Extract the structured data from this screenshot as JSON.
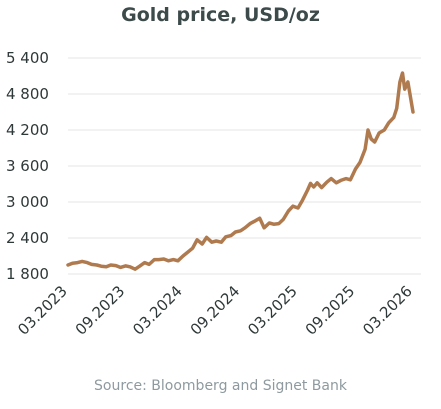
{
  "chart_data": {
    "type": "line",
    "title": "Gold price, USD/oz",
    "source": "Source: Bloomberg and Signet Bank",
    "ylim": [
      1800,
      5400
    ],
    "yticks": [
      {
        "value": 1800,
        "label": "1 800"
      },
      {
        "value": 2400,
        "label": "2 400"
      },
      {
        "value": 3000,
        "label": "3 000"
      },
      {
        "value": 3600,
        "label": "3 600"
      },
      {
        "value": 4200,
        "label": "4 200"
      },
      {
        "value": 4800,
        "label": "4 800"
      },
      {
        "value": 5400,
        "label": "5 400"
      }
    ],
    "xlim": [
      "2023-03",
      "2026-03"
    ],
    "xticks": [
      "03.2023",
      "09.2023",
      "03.2024",
      "09.2024",
      "03.2025",
      "09.2025",
      "03.2026"
    ],
    "grid": true,
    "colors": {
      "line": "#b07a4f",
      "grid": "#e6e6e6",
      "title": "#3d4a4a",
      "source": "#8e9a9f"
    },
    "series": [
      {
        "x": [
          "2023-03-01",
          "2023-03-15",
          "2023-04-01",
          "2023-04-15",
          "2023-05-01",
          "2023-05-15",
          "2023-06-01",
          "2023-06-15",
          "2023-07-01",
          "2023-07-15",
          "2023-08-01",
          "2023-08-15",
          "2023-09-01",
          "2023-09-15",
          "2023-10-01",
          "2023-10-15",
          "2023-11-01",
          "2023-11-15",
          "2023-12-01",
          "2023-12-15",
          "2024-01-01",
          "2024-01-15",
          "2024-02-01",
          "2024-02-15",
          "2024-03-01",
          "2024-03-15",
          "2024-04-01",
          "2024-04-15",
          "2024-05-01",
          "2024-05-15",
          "2024-06-01",
          "2024-06-15",
          "2024-07-01",
          "2024-07-15",
          "2024-08-01",
          "2024-08-15",
          "2024-09-01",
          "2024-09-15",
          "2024-10-01",
          "2024-10-15",
          "2024-11-01",
          "2024-11-15",
          "2024-12-01",
          "2024-12-15",
          "2025-01-01",
          "2025-01-15",
          "2025-02-01",
          "2025-02-15",
          "2025-03-01",
          "2025-03-15",
          "2025-04-01",
          "2025-04-10",
          "2025-04-20",
          "2025-05-01",
          "2025-05-15",
          "2025-06-01",
          "2025-06-15",
          "2025-07-01",
          "2025-07-15",
          "2025-08-01",
          "2025-08-15",
          "2025-09-01",
          "2025-09-15",
          "2025-10-01",
          "2025-10-10",
          "2025-10-20",
          "2025-11-01",
          "2025-11-15",
          "2025-12-01",
          "2025-12-15",
          "2026-01-01",
          "2026-01-10",
          "2026-01-20",
          "2026-01-28",
          "2026-02-05",
          "2026-02-15",
          "2026-03-01"
        ],
        "values": [
          1950,
          1980,
          1990,
          2010,
          1990,
          1960,
          1950,
          1930,
          1920,
          1950,
          1940,
          1910,
          1935,
          1920,
          1880,
          1930,
          1990,
          1960,
          2040,
          2040,
          2050,
          2020,
          2040,
          2020,
          2100,
          2160,
          2230,
          2370,
          2300,
          2410,
          2330,
          2350,
          2330,
          2420,
          2440,
          2500,
          2520,
          2570,
          2640,
          2680,
          2730,
          2570,
          2650,
          2630,
          2640,
          2710,
          2850,
          2930,
          2900,
          3030,
          3200,
          3310,
          3250,
          3320,
          3240,
          3330,
          3390,
          3320,
          3360,
          3390,
          3370,
          3550,
          3660,
          3880,
          4200,
          4050,
          4000,
          4150,
          4200,
          4320,
          4410,
          4560,
          5000,
          5150,
          4880,
          5000,
          4500
        ]
      }
    ]
  }
}
